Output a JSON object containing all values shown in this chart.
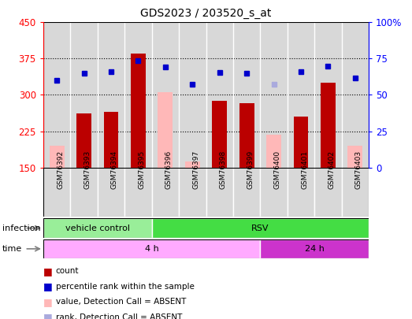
{
  "title": "GDS2023 / 203520_s_at",
  "samples": [
    "GSM76392",
    "GSM76393",
    "GSM76394",
    "GSM76395",
    "GSM76396",
    "GSM76397",
    "GSM76398",
    "GSM76399",
    "GSM76400",
    "GSM76401",
    "GSM76402",
    "GSM76403"
  ],
  "count_values": [
    null,
    262,
    265,
    385,
    null,
    null,
    288,
    283,
    null,
    255,
    325,
    null
  ],
  "count_absent": [
    195,
    null,
    null,
    null,
    305,
    163,
    null,
    null,
    218,
    null,
    null,
    195
  ],
  "rank_values": [
    330,
    345,
    348,
    370,
    358,
    322,
    347,
    345,
    null,
    348,
    360,
    335
  ],
  "rank_absent": [
    null,
    null,
    null,
    null,
    null,
    null,
    null,
    null,
    322,
    null,
    null,
    null
  ],
  "ylim_left": [
    150,
    450
  ],
  "ylim_right": [
    0,
    100
  ],
  "yticks_left": [
    150,
    225,
    300,
    375,
    450
  ],
  "yticks_right": [
    0,
    25,
    50,
    75,
    100
  ],
  "ytick_labels_right": [
    "0",
    "25",
    "50",
    "75",
    "100%"
  ],
  "infection_groups": [
    {
      "label": "vehicle control",
      "start": 0,
      "end": 4,
      "color": "#99EE99"
    },
    {
      "label": "RSV",
      "start": 4,
      "end": 12,
      "color": "#44DD44"
    }
  ],
  "time_groups": [
    {
      "label": "4 h",
      "start": 0,
      "end": 8,
      "color": "#FFAAFF"
    },
    {
      "label": "24 h",
      "start": 8,
      "end": 12,
      "color": "#CC33CC"
    }
  ],
  "bar_width": 0.55,
  "dark_red": "#BB0000",
  "light_pink": "#FFB8B8",
  "dark_blue": "#0000CC",
  "light_blue": "#AAAADD",
  "bg_color": "#D8D8D8",
  "grid_color": "#000000",
  "col_sep_color": "#FFFFFF",
  "legend_items": [
    {
      "label": "count",
      "color": "#BB0000"
    },
    {
      "label": "percentile rank within the sample",
      "color": "#0000CC"
    },
    {
      "label": "value, Detection Call = ABSENT",
      "color": "#FFB8B8"
    },
    {
      "label": "rank, Detection Call = ABSENT",
      "color": "#AAAADD"
    }
  ]
}
